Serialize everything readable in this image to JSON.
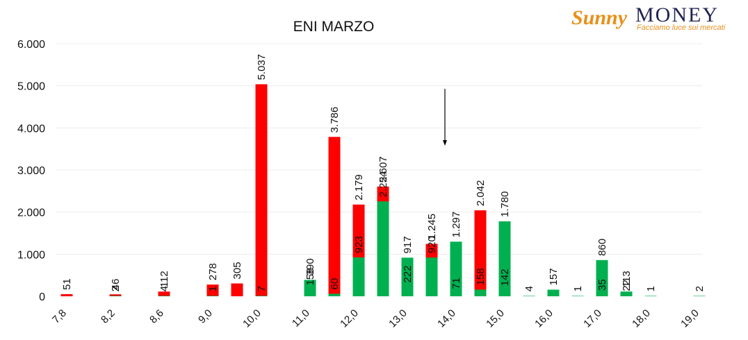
{
  "brand": {
    "name_part1": "Sunny",
    "name_part2": "MONEY",
    "tagline": "Facciamo luce sui mercati"
  },
  "colors": {
    "red_series": "#ff0000",
    "green_series": "#00b050",
    "arrow": "#000000"
  },
  "chart_data": {
    "type": "bar",
    "title": "ENI MARZO",
    "xlabel": "",
    "ylabel": "",
    "ylim": [
      0,
      6000
    ],
    "yticks": [
      "0",
      "1.000",
      "2.000",
      "3.000",
      "4.000",
      "5.000",
      "6.000"
    ],
    "ytick_values": [
      0,
      1000,
      2000,
      3000,
      4000,
      5000,
      6000
    ],
    "categories": [
      "7,8",
      "8,2",
      "8,6",
      "9,0",
      "10,0",
      "11,0",
      "12,0",
      "13,0",
      "14,0",
      "15,0",
      "16,0",
      "17,0",
      "18,0",
      "19,0"
    ],
    "grid": true,
    "legend": "none",
    "series": [
      {
        "color": "red",
        "bars": [
          {
            "category_index": 0,
            "value": 51,
            "label": "51"
          },
          {
            "category_index": 1,
            "value": 46,
            "label": "46"
          },
          {
            "category_index": 2,
            "value": 112,
            "label": "112"
          },
          {
            "category_index": 3,
            "value": 278,
            "label": "278"
          },
          {
            "category_index": 3,
            "value": 305,
            "label": "305",
            "offset": 1
          },
          {
            "category_index": 4,
            "value": 5037,
            "label": "5.037"
          },
          {
            "category_index": 5,
            "value": 158,
            "label": "158"
          },
          {
            "category_index": 5,
            "value": 3786,
            "label": "3.786",
            "offset": 1
          },
          {
            "category_index": 6,
            "value": 2179,
            "label": "2.179"
          },
          {
            "category_index": 6,
            "value": 2607,
            "label": "2.607",
            "offset": 1
          },
          {
            "category_index": 7,
            "value": 222,
            "label": "222"
          },
          {
            "category_index": 7,
            "value": 1245,
            "label": "1.245",
            "offset": 1
          },
          {
            "category_index": 8,
            "value": 71,
            "label": "71"
          },
          {
            "category_index": 8,
            "value": 2042,
            "label": "2.042",
            "offset": 1
          },
          {
            "category_index": 9,
            "value": 142,
            "label": "142"
          }
        ]
      },
      {
        "color": "green",
        "bars": [
          {
            "category_index": 1,
            "value": 2,
            "label": "2"
          },
          {
            "category_index": 2,
            "value": 4,
            "label": "4"
          },
          {
            "category_index": 3,
            "value": 1,
            "label": "1"
          },
          {
            "category_index": 4,
            "value": 7,
            "label": "7"
          },
          {
            "category_index": 5,
            "value": 390,
            "label": "390"
          },
          {
            "category_index": 5,
            "value": 60,
            "label": "60",
            "offset": 1
          },
          {
            "category_index": 6,
            "value": 923,
            "label": "923"
          },
          {
            "category_index": 6,
            "value": 2254,
            "label": "2.254",
            "offset": 1
          },
          {
            "category_index": 7,
            "value": 917,
            "label": "917"
          },
          {
            "category_index": 7,
            "value": 920,
            "label": "920",
            "offset": 1
          },
          {
            "category_index": 8,
            "value": 1297,
            "label": "1.297"
          },
          {
            "category_index": 8,
            "value": 158,
            "label": "158",
            "offset": 1
          },
          {
            "category_index": 9,
            "value": 1780,
            "label": "1.780"
          },
          {
            "category_index": 9,
            "value": 4,
            "label": "4",
            "offset": 1
          },
          {
            "category_index": 10,
            "value": 157,
            "label": "157"
          },
          {
            "category_index": 10,
            "value": 1,
            "label": "1",
            "offset": 1
          },
          {
            "category_index": 10,
            "value": 860,
            "label": "860",
            "offset": 2
          },
          {
            "category_index": 10,
            "value": 22,
            "label": "22",
            "offset": 3
          },
          {
            "category_index": 11,
            "value": 35,
            "label": "35"
          },
          {
            "category_index": 11,
            "value": 113,
            "label": "113",
            "offset": 1
          },
          {
            "category_index": 12,
            "value": 1,
            "label": "1"
          },
          {
            "category_index": 13,
            "value": 2,
            "label": "2"
          }
        ]
      }
    ],
    "annotations": [
      {
        "type": "arrow-down",
        "at_value": 14.0
      }
    ]
  }
}
